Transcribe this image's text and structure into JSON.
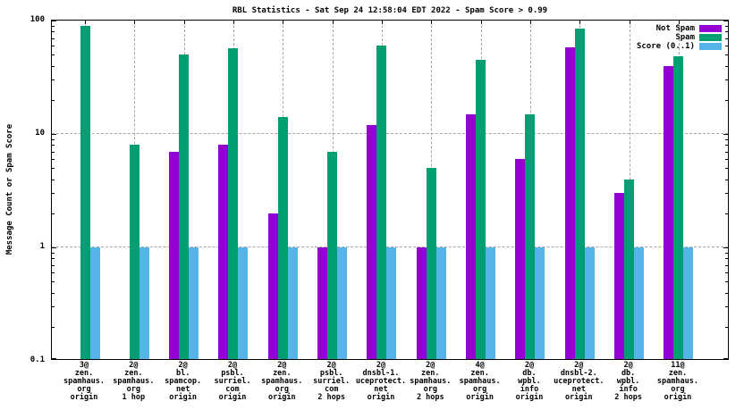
{
  "chart_data": {
    "type": "bar",
    "title": "RBL Statistics - Sat Sep 24 12:58:04 EDT 2022 - Spam Score > 0.99",
    "xlabel": "",
    "ylabel": "Message Count or Spam Score",
    "y_scale": "log",
    "ylim": [
      0.1,
      100
    ],
    "y_major_ticks": [
      100,
      10,
      1,
      0.1
    ],
    "y_major_tick_labels": [
      "100",
      "10",
      "1",
      "0.1"
    ],
    "grid": {
      "on": true,
      "style": "dashed",
      "color": "#a6a6a6",
      "horizontal_at": [
        10,
        1
      ],
      "vertical_at_each_category": true
    },
    "legend": {
      "position": "top-right-inside",
      "entries": [
        {
          "label": "Not Spam",
          "color": "#9400d3"
        },
        {
          "label": "Spam",
          "color": "#009e73"
        },
        {
          "label": "Score (0..1)",
          "color": "#56b4e9"
        }
      ]
    },
    "categories": [
      [
        "3@",
        "zen.",
        "spamhaus.",
        "org",
        "origin"
      ],
      [
        "2@",
        "zen.",
        "spamhaus.",
        "org",
        "1 hop"
      ],
      [
        "2@",
        "bl.",
        "spamcop.",
        "net",
        "origin"
      ],
      [
        "2@",
        "psbl.",
        "surriel.",
        "com",
        "origin"
      ],
      [
        "2@",
        "zen.",
        "spamhaus.",
        "org",
        "origin"
      ],
      [
        "2@",
        "psbl.",
        "surriel.",
        "com",
        "2 hops"
      ],
      [
        "2@",
        "dnsbl-1.",
        "uceprotect.",
        "net",
        "origin"
      ],
      [
        "2@",
        "zen.",
        "spamhaus.",
        "org",
        "2 hops"
      ],
      [
        "4@",
        "zen.",
        "spamhaus.",
        "org",
        "origin"
      ],
      [
        "2@",
        "db.",
        "wpbl.",
        "info",
        "origin"
      ],
      [
        "2@",
        "dnsbl-2.",
        "uceprotect.",
        "net",
        "origin"
      ],
      [
        "2@",
        "db.",
        "wpbl.",
        "info",
        "2 hops"
      ],
      [
        "11@",
        "zen.",
        "spamhaus.",
        "org",
        "origin"
      ]
    ],
    "series": [
      {
        "name": "Not Spam",
        "color": "#9400d3",
        "values": [
          null,
          null,
          7,
          8,
          2,
          1,
          12,
          1,
          15,
          6,
          58,
          3,
          40
        ]
      },
      {
        "name": "Spam",
        "color": "#009e73",
        "values": [
          90,
          8,
          50,
          57,
          14,
          7,
          60,
          5,
          45,
          15,
          85,
          4,
          48
        ]
      },
      {
        "name": "Score (0..1)",
        "color": "#56b4e9",
        "values": [
          1,
          1,
          1,
          1,
          1,
          1,
          1,
          1,
          1,
          1,
          1,
          1,
          1
        ]
      }
    ],
    "colors": {
      "background": "#ffffff",
      "border": "#000000",
      "grid": "#a6a6a6",
      "not_spam": "#9400d3",
      "spam": "#009e73",
      "score": "#56b4e9"
    }
  }
}
